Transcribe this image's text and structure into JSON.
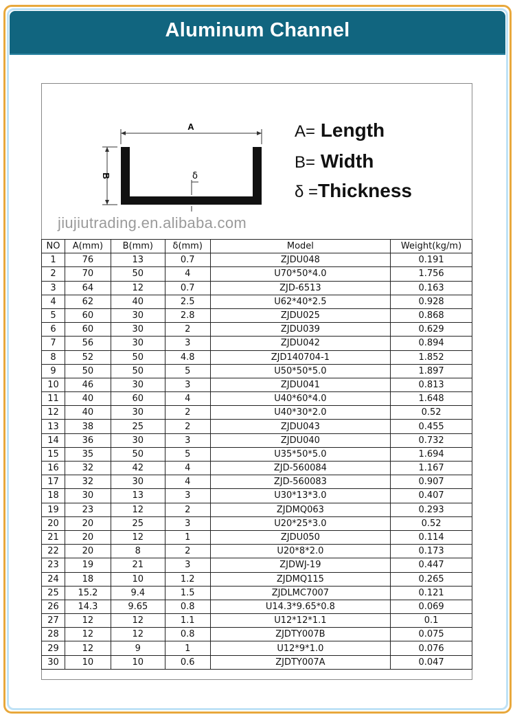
{
  "title": "Aluminum Channel",
  "diagram": {
    "label_a": "A",
    "label_b": "B",
    "label_delta": "δ",
    "legend": [
      {
        "symbol": "A=",
        "text": "Length"
      },
      {
        "symbol": "B=",
        "text": "Width"
      },
      {
        "symbol": "δ =",
        "text": "Thickness"
      }
    ]
  },
  "table": {
    "headers": [
      "NO",
      "A(mm)",
      "B(mm)",
      "δ(mm)",
      "Model",
      "Weight(kg/m)"
    ],
    "rows": [
      [
        "1",
        "76",
        "13",
        "0.7",
        "ZJDU048",
        "0.191"
      ],
      [
        "2",
        "70",
        "50",
        "4",
        "U70*50*4.0",
        "1.756"
      ],
      [
        "3",
        "64",
        "12",
        "0.7",
        "ZJD-6513",
        "0.163"
      ],
      [
        "4",
        "62",
        "40",
        "2.5",
        "U62*40*2.5",
        "0.928"
      ],
      [
        "5",
        "60",
        "30",
        "2.8",
        "ZJDU025",
        "0.868"
      ],
      [
        "6",
        "60",
        "30",
        "2",
        "ZJDU039",
        "0.629"
      ],
      [
        "7",
        "56",
        "30",
        "3",
        "ZJDU042",
        "0.894"
      ],
      [
        "8",
        "52",
        "50",
        "4.8",
        "ZJD140704-1",
        "1.852"
      ],
      [
        "9",
        "50",
        "50",
        "5",
        "U50*50*5.0",
        "1.897"
      ],
      [
        "10",
        "46",
        "30",
        "3",
        "ZJDU041",
        "0.813"
      ],
      [
        "11",
        "40",
        "60",
        "4",
        "U40*60*4.0",
        "1.648"
      ],
      [
        "12",
        "40",
        "30",
        "2",
        "U40*30*2.0",
        "0.52"
      ],
      [
        "13",
        "38",
        "25",
        "2",
        "ZJDU043",
        "0.455"
      ],
      [
        "14",
        "36",
        "30",
        "3",
        "ZJDU040",
        "0.732"
      ],
      [
        "15",
        "35",
        "50",
        "5",
        "U35*50*5.0",
        "1.694"
      ],
      [
        "16",
        "32",
        "42",
        "4",
        "ZJD-560084",
        "1.167"
      ],
      [
        "17",
        "32",
        "30",
        "4",
        "ZJD-560083",
        "0.907"
      ],
      [
        "18",
        "30",
        "13",
        "3",
        "U30*13*3.0",
        "0.407"
      ],
      [
        "19",
        "23",
        "12",
        "2",
        "ZJDMQ063",
        "0.293"
      ],
      [
        "20",
        "20",
        "25",
        "3",
        "U20*25*3.0",
        "0.52"
      ],
      [
        "21",
        "20",
        "12",
        "1",
        "ZJDU050",
        "0.114"
      ],
      [
        "22",
        "20",
        "8",
        "2",
        "U20*8*2.0",
        "0.173"
      ],
      [
        "23",
        "19",
        "21",
        "3",
        "ZJDWJ-19",
        "0.447"
      ],
      [
        "24",
        "18",
        "10",
        "1.2",
        "ZJDMQ115",
        "0.265"
      ],
      [
        "25",
        "15.2",
        "9.4",
        "1.5",
        "ZJDLMC7007",
        "0.121"
      ],
      [
        "26",
        "14.3",
        "9.65",
        "0.8",
        "U14.3*9.65*0.8",
        "0.069"
      ],
      [
        "27",
        "12",
        "12",
        "1.1",
        "U12*12*1.1",
        "0.1"
      ],
      [
        "28",
        "12",
        "12",
        "0.8",
        "ZJDTY007B",
        "0.075"
      ],
      [
        "29",
        "12",
        "9",
        "1",
        "U12*9*1.0",
        "0.076"
      ],
      [
        "30",
        "10",
        "10",
        "0.6",
        "ZJDTY007A",
        "0.047"
      ]
    ]
  },
  "watermark": "jiujiutrading.en.alibaba.com",
  "colors": {
    "header_bg": "#11657f",
    "outer_border": "#e8a83c",
    "inner_border": "#bfe2f6"
  }
}
